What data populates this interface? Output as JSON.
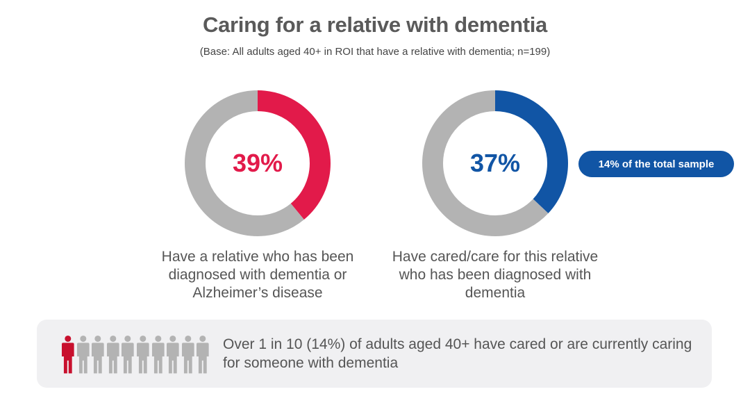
{
  "title": "Caring for a relative with dementia",
  "subtitle": "(Base: All adults aged 40+ in ROI that have a relative with dementia; n=199)",
  "chart_data": [
    {
      "type": "pie",
      "value_label": "39%",
      "values": [
        39,
        61
      ],
      "colors": [
        "#e21a4a",
        "#b3b3b3"
      ],
      "caption": "Have a relative who has been diagnosed with dementia or Alzheimer’s disease"
    },
    {
      "type": "pie",
      "value_label": "37%",
      "values": [
        37,
        63
      ],
      "colors": [
        "#1155a5",
        "#b3b3b3"
      ],
      "caption": "Have cared/care for this relative who has been diagnosed with dementia",
      "callout": "14% of the total sample"
    }
  ],
  "footer": {
    "text": "Over 1 in 10 (14%) of adults aged 40+ have cared or are currently caring for someone with dementia",
    "people_total": 10,
    "people_highlighted": 1,
    "highlight_color": "#c8102e",
    "base_color": "#b3b3b3",
    "icon": "person-icon"
  }
}
